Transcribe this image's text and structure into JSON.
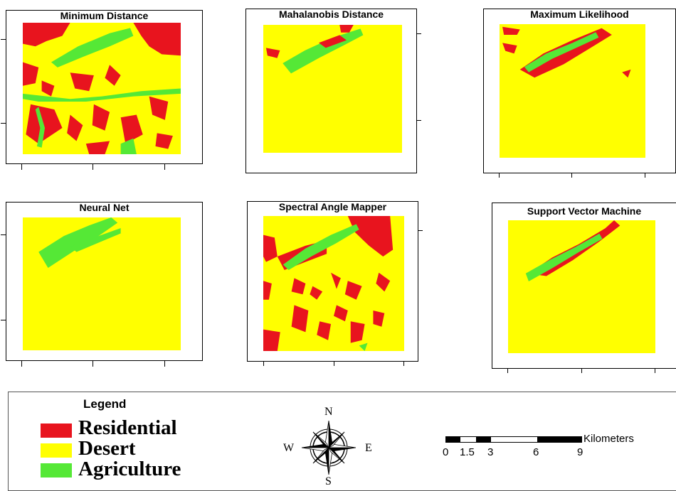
{
  "colors": {
    "residential": "#e8141e",
    "desert": "#ffff00",
    "agriculture": "#55e836"
  },
  "panels": [
    {
      "title": "Minimum Distance"
    },
    {
      "title": "Mahalanobis Distance"
    },
    {
      "title": "Maximum Likelihood"
    },
    {
      "title": "Neural Net"
    },
    {
      "title": "Spectral Angle Mapper"
    },
    {
      "title": "Support Vector Machine"
    }
  ],
  "legend": {
    "title": "Legend",
    "items": [
      {
        "label": "Residential",
        "color": "#e8141e"
      },
      {
        "label": "Desert",
        "color": "#ffff00"
      },
      {
        "label": "Agriculture",
        "color": "#55e836"
      }
    ]
  },
  "north_arrow": {
    "n": "N",
    "s": "S",
    "e": "E",
    "w": "W"
  },
  "scale_bar": {
    "unit": "Kilometers",
    "ticks": [
      "0",
      "1.5",
      "3",
      "6",
      "9"
    ]
  }
}
